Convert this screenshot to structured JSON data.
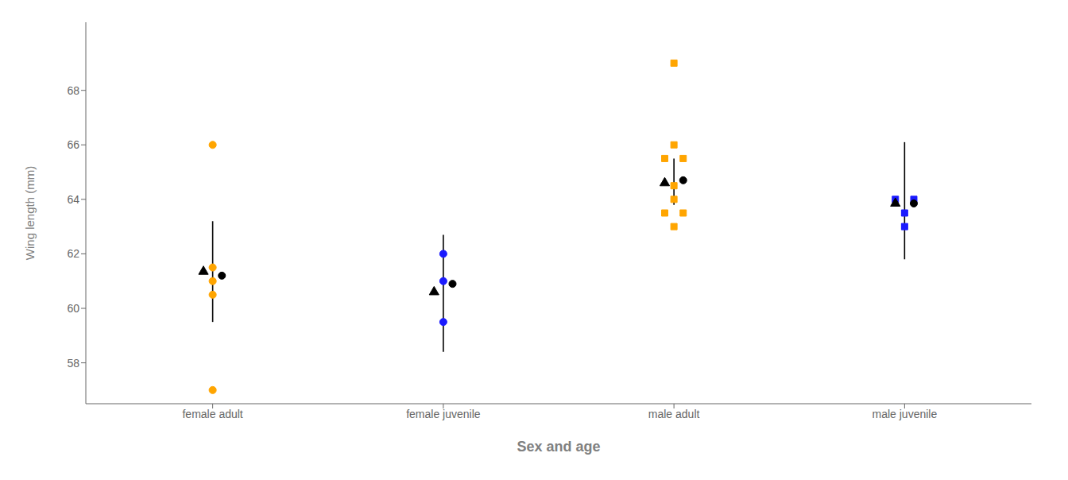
{
  "chart_data": {
    "type": "scatter",
    "xlabel": "Sex and age",
    "ylabel": "Wing length (mm)",
    "categories": [
      "female adult",
      "female juvenile",
      "male adult",
      "male juvenile"
    ],
    "ylim": [
      56.5,
      70.5
    ],
    "yticks": [
      58,
      60,
      62,
      64,
      66,
      68
    ],
    "grid": false,
    "series": [
      {
        "type": "scatter",
        "marker": "circle",
        "color": "#FFA500",
        "x": [
          "female adult",
          "female adult",
          "female adult",
          "female adult",
          "female adult"
        ],
        "values": [
          57.0,
          60.5,
          61.0,
          61.5,
          66.0
        ]
      },
      {
        "type": "scatter",
        "marker": "circle",
        "color": "#1A1AFF",
        "x": [
          "female juvenile",
          "female juvenile",
          "female juvenile"
        ],
        "values": [
          59.5,
          61.0,
          62.0
        ]
      },
      {
        "type": "scatter",
        "marker": "square",
        "color": "#FFA500",
        "x": [
          "male adult",
          "male adult",
          "male adult",
          "male adult",
          "male adult",
          "male adult",
          "male adult",
          "male adult",
          "male adult"
        ],
        "values": [
          63.0,
          63.5,
          63.5,
          64.0,
          64.5,
          65.5,
          65.5,
          66.0,
          69.0
        ]
      },
      {
        "type": "scatter",
        "marker": "square",
        "color": "#1A1AFF",
        "x": [
          "male juvenile",
          "male juvenile",
          "male juvenile",
          "male juvenile"
        ],
        "values": [
          63.0,
          63.5,
          64.0,
          64.0
        ]
      },
      {
        "type": "scatter",
        "marker": "triangle",
        "color": "#000000",
        "x": [
          "female adult",
          "female juvenile",
          "male adult",
          "male juvenile"
        ],
        "values": [
          61.35,
          60.6,
          64.6,
          63.85
        ],
        "error_low": [
          59.5,
          58.4,
          63.8,
          61.8
        ],
        "error_high": [
          63.2,
          62.7,
          65.5,
          66.1
        ]
      },
      {
        "type": "scatter",
        "marker": "circle",
        "color": "#000000",
        "x": [
          "female adult",
          "female juvenile",
          "male adult",
          "male juvenile"
        ],
        "values": [
          61.2,
          60.9,
          64.7,
          63.85
        ]
      }
    ]
  }
}
